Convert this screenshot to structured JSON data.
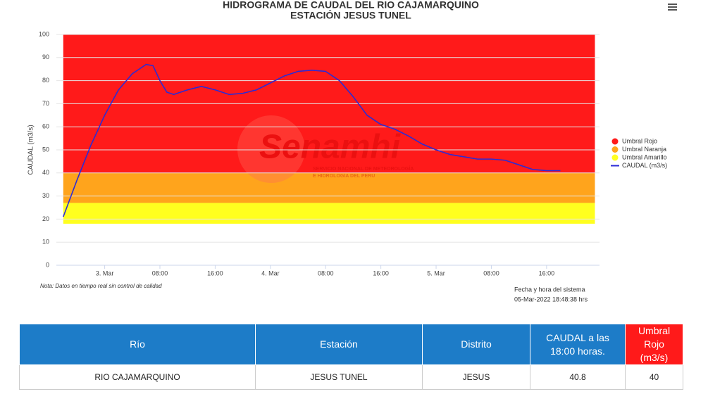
{
  "chart_data": {
    "type": "line",
    "title": "HIDROGRAMA DE CAUDAL DEL RIO CAJAMARQUINO",
    "subtitle": "ESTACIÓN JESUS TUNEL",
    "y_label": "CAUDAL (m3/s)",
    "watermark": "Senamhi",
    "watermark_sub": [
      "SERVICIO NACIONAL DE METEOROLOGÍA",
      "E HIDROLOGÍA DEL PERÚ"
    ],
    "note": "Nota: Datos en tiempo real sin control de calidad",
    "system_time_label": "Fecha y hora del sistema",
    "system_time": "05-Mar-2022 18:48:38 hrs",
    "ylim": [
      0,
      100
    ],
    "yticks": [
      0,
      10,
      20,
      30,
      40,
      50,
      60,
      70,
      80,
      90,
      100
    ],
    "xlim": [
      "2022-03-02T17:00",
      "2022-03-05T23:40"
    ],
    "xticks": [
      {
        "value": "2022-03-03T00:00",
        "label": "3. Mar"
      },
      {
        "value": "2022-03-03T08:00",
        "label": "08:00"
      },
      {
        "value": "2022-03-03T16:00",
        "label": "16:00"
      },
      {
        "value": "2022-03-04T00:00",
        "label": "4. Mar"
      },
      {
        "value": "2022-03-04T08:00",
        "label": "08:00"
      },
      {
        "value": "2022-03-04T16:00",
        "label": "16:00"
      },
      {
        "value": "2022-03-05T00:00",
        "label": "5. Mar"
      },
      {
        "value": "2022-03-05T08:00",
        "label": "08:00"
      },
      {
        "value": "2022-03-05T16:00",
        "label": "16:00"
      }
    ],
    "bands": [
      {
        "name": "Umbral Rojo",
        "color": "#ff1a1a",
        "from": 40,
        "to": 100
      },
      {
        "name": "Umbral Naranja",
        "color": "#ffa41c",
        "from": 27,
        "to": 40
      },
      {
        "name": "Umbral Amarillo",
        "color": "#ffff1f",
        "from": 18,
        "to": 27
      }
    ],
    "band_start": "2022-03-02T18:00",
    "band_end": "2022-03-05T23:00",
    "x": [
      "2022-03-02T18:00",
      "2022-03-02T20:00",
      "2022-03-02T22:00",
      "2022-03-03T00:00",
      "2022-03-03T02:00",
      "2022-03-03T04:00",
      "2022-03-03T06:00",
      "2022-03-03T07:00",
      "2022-03-03T08:00",
      "2022-03-03T09:00",
      "2022-03-03T10:00",
      "2022-03-03T12:00",
      "2022-03-03T14:00",
      "2022-03-03T16:00",
      "2022-03-03T18:00",
      "2022-03-03T20:00",
      "2022-03-03T22:00",
      "2022-03-04T00:00",
      "2022-03-04T02:00",
      "2022-03-04T04:00",
      "2022-03-04T06:00",
      "2022-03-04T08:00",
      "2022-03-04T10:00",
      "2022-03-04T12:00",
      "2022-03-04T14:00",
      "2022-03-04T16:00",
      "2022-03-04T18:00",
      "2022-03-04T20:00",
      "2022-03-04T22:00",
      "2022-03-05T00:00",
      "2022-03-05T02:00",
      "2022-03-05T04:00",
      "2022-03-05T06:00",
      "2022-03-05T08:00",
      "2022-03-05T10:00",
      "2022-03-05T12:00",
      "2022-03-05T14:00",
      "2022-03-05T16:00",
      "2022-03-05T18:00"
    ],
    "series": [
      {
        "name": "CAUDAL (m3/s)",
        "color": "#2b2bd6",
        "values": [
          21,
          37,
          52,
          65,
          76,
          83,
          87,
          86.5,
          80,
          75,
          74,
          76,
          77.5,
          76,
          74,
          74.5,
          76,
          79,
          82,
          84,
          84.5,
          84,
          80,
          73,
          65,
          61,
          59,
          56,
          52.5,
          50,
          48,
          47,
          46,
          46,
          45.5,
          43.5,
          41.5,
          41,
          41
        ]
      }
    ]
  },
  "table": {
    "headers": [
      "Río",
      "Estación",
      "Distrito",
      "CAUDAL a las 18:00 horas.",
      "Umbral Rojo (m3/s)"
    ],
    "rows": [
      [
        "RIO CAJAMARQUINO",
        "JESUS TUNEL",
        "JESUS",
        "40.8",
        "40"
      ]
    ]
  }
}
